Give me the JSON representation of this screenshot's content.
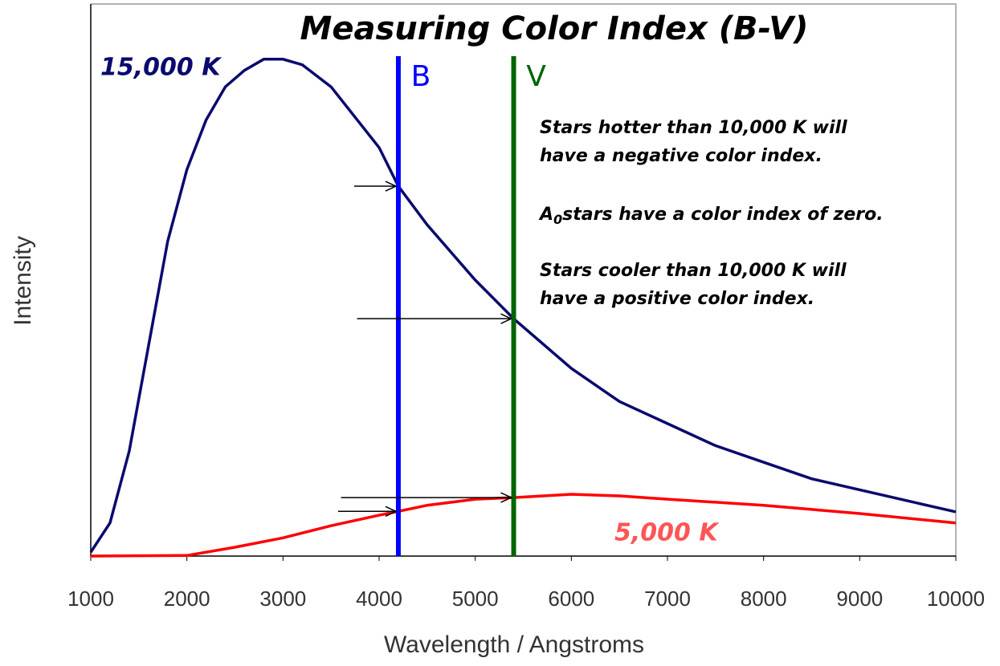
{
  "chart_data": {
    "type": "line",
    "title": "Measuring Color Index (B-V)",
    "xlabel": "Wavelength / Angstroms",
    "ylabel": "Intensity",
    "xlim": [
      1000,
      10000
    ],
    "xticks": [
      1000,
      2000,
      3000,
      4000,
      5000,
      6000,
      7000,
      8000,
      9000,
      10000
    ],
    "ylim": [
      0,
      100
    ],
    "series": [
      {
        "name": "15,000 K",
        "color": "#0a0a6e",
        "x": [
          1000,
          1200,
          1400,
          1600,
          1800,
          2000,
          2200,
          2400,
          2600,
          2800,
          3000,
          3200,
          3500,
          4000,
          4200,
          4500,
          5000,
          5400,
          6000,
          6500,
          7000,
          7500,
          8000,
          8500,
          9000,
          9500,
          10000
        ],
        "values": [
          0.7,
          6,
          19,
          38,
          57,
          70,
          79,
          85,
          88,
          90,
          90,
          89,
          85,
          74,
          67,
          60,
          50,
          43,
          34,
          28,
          24,
          20,
          17,
          14,
          12,
          10,
          8
        ]
      },
      {
        "name": "5,000 K",
        "color": "#ff0000",
        "x": [
          1000,
          2000,
          2500,
          3000,
          3500,
          4000,
          4200,
          4500,
          5000,
          5400,
          6000,
          6500,
          7000,
          8000,
          9000,
          10000
        ],
        "values": [
          0,
          0.1,
          1.6,
          3.3,
          5.5,
          7.4,
          8.1,
          9.2,
          10.3,
          10.6,
          11.2,
          10.9,
          10.3,
          9.2,
          7.7,
          6.0
        ]
      }
    ],
    "bands": [
      {
        "name": "B",
        "x": 4200,
        "color": "#0000ff"
      },
      {
        "name": "V",
        "x": 5400,
        "color": "#006400"
      }
    ],
    "annotations": {
      "hot": [
        "Stars hotter than 10,000 K will",
        "have a negative color index."
      ],
      "a0": {
        "base": "A",
        "sub": "0",
        "text": "stars have a color index of zero."
      },
      "cool": [
        "Stars cooler than 10,000 K will",
        "have a positive color index."
      ]
    }
  }
}
